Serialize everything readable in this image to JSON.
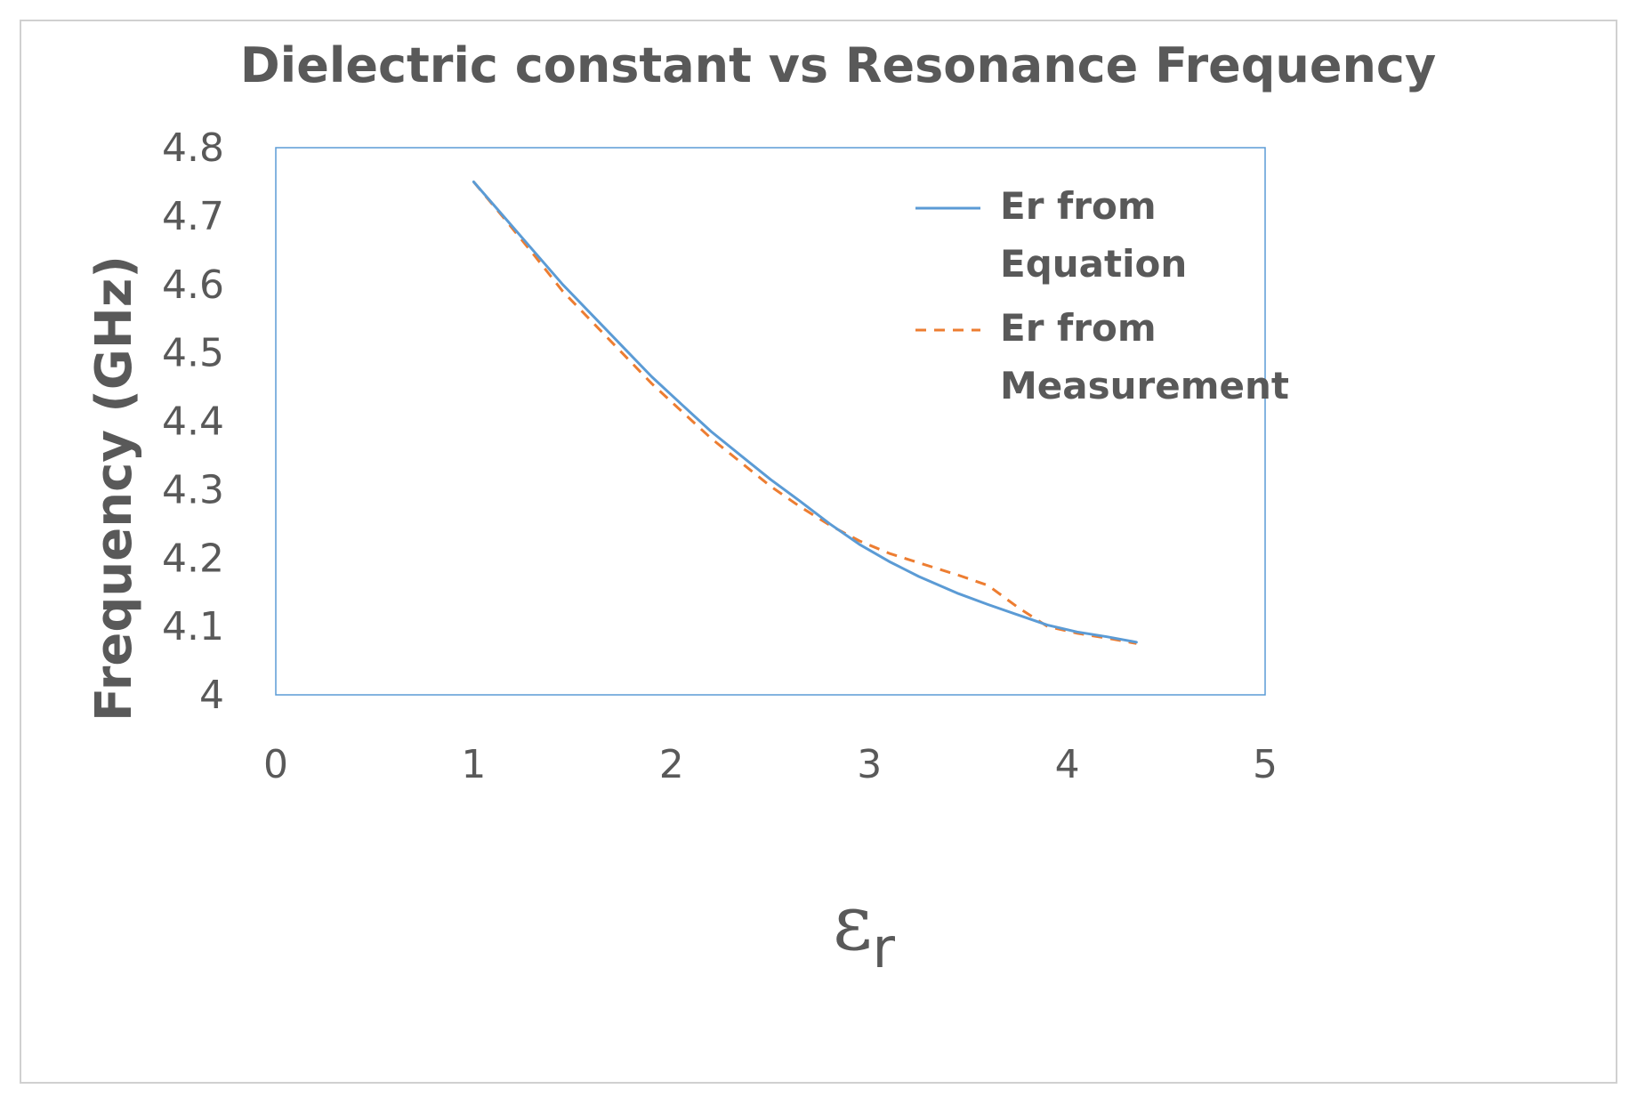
{
  "chart_data": {
    "type": "line",
    "title": "Dielectric constant vs Resonance Frequency",
    "xlabel_symbol": "ε",
    "xlabel_subscript": "r",
    "ylabel": "Frequency (GHz)",
    "xlim": [
      0,
      5
    ],
    "ylim": [
      4,
      4.8
    ],
    "x_ticks": [
      0,
      1,
      2,
      3,
      4,
      5
    ],
    "y_ticks": [
      4,
      4.1,
      4.2,
      4.3,
      4.4,
      4.5,
      4.6,
      4.7,
      4.8
    ],
    "y_tick_labels": [
      "4",
      "4.1",
      "4.2",
      "4.3",
      "4.4",
      "4.5",
      "4.6",
      "4.7",
      "4.8"
    ],
    "grid": false,
    "legend_position": "top-right",
    "series": [
      {
        "name": [
          "Er from",
          "Equation"
        ],
        "color": "#5b9bd5",
        "dash": "solid",
        "x": [
          1.0,
          1.15,
          1.3,
          1.45,
          1.6,
          1.75,
          1.9,
          2.05,
          2.2,
          2.35,
          2.5,
          2.65,
          2.8,
          2.95,
          3.1,
          3.25,
          3.45,
          3.6,
          3.75,
          3.9,
          4.05,
          4.2,
          4.35
        ],
        "y": [
          4.75,
          4.7,
          4.65,
          4.6,
          4.555,
          4.51,
          4.465,
          4.425,
          4.385,
          4.35,
          4.315,
          4.283,
          4.25,
          4.22,
          4.195,
          4.173,
          4.148,
          4.132,
          4.117,
          4.102,
          4.092,
          4.085,
          4.077
        ]
      },
      {
        "name": [
          "Er from",
          "Measurement"
        ],
        "color": "#ed7d31",
        "dash": "dashed",
        "x": [
          1.0,
          1.15,
          1.3,
          1.45,
          1.6,
          1.75,
          1.9,
          2.05,
          2.2,
          2.35,
          2.5,
          2.65,
          2.8,
          2.95,
          3.1,
          3.25,
          3.45,
          3.6,
          3.75,
          3.9,
          4.05,
          4.2,
          4.35
        ],
        "y": [
          4.75,
          4.698,
          4.645,
          4.59,
          4.545,
          4.5,
          4.455,
          4.415,
          4.375,
          4.34,
          4.305,
          4.275,
          4.248,
          4.225,
          4.207,
          4.193,
          4.175,
          4.16,
          4.128,
          4.1,
          4.09,
          4.083,
          4.075
        ]
      }
    ]
  }
}
